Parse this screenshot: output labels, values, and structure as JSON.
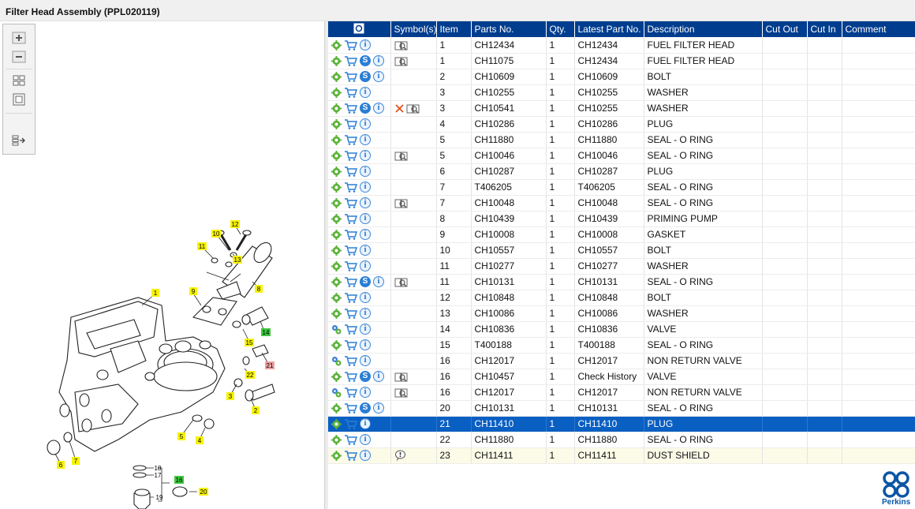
{
  "window": {
    "title": "Filter Head Assembly (PPL020119)"
  },
  "colors": {
    "header_bg": "#003d8f",
    "selected_row": "#0a5fc2",
    "highlight_row": "#fbfbe8",
    "brand": "#0b55a6"
  },
  "toolbar": {
    "buttons": [
      "zoom-in-icon",
      "zoom-out-icon",
      "fit-grid-icon",
      "zoom-window-icon",
      "export-icon"
    ]
  },
  "diagram": {
    "callouts": [
      "1",
      "2",
      "3",
      "4",
      "5",
      "6",
      "7",
      "8",
      "9",
      "10",
      "11",
      "12",
      "13",
      "14",
      "15",
      "16",
      "17",
      "18",
      "19",
      "20",
      "21",
      "22"
    ]
  },
  "table": {
    "columns": [
      "",
      "Symbol(s)",
      "Item",
      "Parts No.",
      "Qty.",
      "Latest Part No.",
      "Description",
      "Cut Out",
      "Cut In",
      "Comment"
    ],
    "rows": [
      {
        "gear": "single",
        "s": false,
        "sym": "book",
        "item": "1",
        "part": "CH12434",
        "qty": "1",
        "latest": "CH12434",
        "desc": "FUEL FILTER HEAD",
        "state": "",
        "first": true
      },
      {
        "gear": "single",
        "s": true,
        "sym": "book",
        "item": "1",
        "part": "CH11075",
        "qty": "1",
        "latest": "CH12434",
        "desc": "FUEL FILTER HEAD",
        "state": ""
      },
      {
        "gear": "single",
        "s": true,
        "sym": "",
        "item": "2",
        "part": "CH10609",
        "qty": "1",
        "latest": "CH10609",
        "desc": "BOLT",
        "state": ""
      },
      {
        "gear": "single",
        "s": false,
        "sym": "",
        "item": "3",
        "part": "CH10255",
        "qty": "1",
        "latest": "CH10255",
        "desc": "WASHER",
        "state": ""
      },
      {
        "gear": "single",
        "s": true,
        "sym": "x-book",
        "item": "3",
        "part": "CH10541",
        "qty": "1",
        "latest": "CH10255",
        "desc": "WASHER",
        "state": ""
      },
      {
        "gear": "single",
        "s": false,
        "sym": "",
        "item": "4",
        "part": "CH10286",
        "qty": "1",
        "latest": "CH10286",
        "desc": "PLUG",
        "state": ""
      },
      {
        "gear": "single",
        "s": false,
        "sym": "",
        "item": "5",
        "part": "CH11880",
        "qty": "1",
        "latest": "CH11880",
        "desc": "SEAL - O RING",
        "state": ""
      },
      {
        "gear": "single",
        "s": false,
        "sym": "book",
        "item": "5",
        "part": "CH10046",
        "qty": "1",
        "latest": "CH10046",
        "desc": "SEAL - O RING",
        "state": ""
      },
      {
        "gear": "single",
        "s": false,
        "sym": "",
        "item": "6",
        "part": "CH10287",
        "qty": "1",
        "latest": "CH10287",
        "desc": "PLUG",
        "state": ""
      },
      {
        "gear": "single",
        "s": false,
        "sym": "",
        "item": "7",
        "part": "T406205",
        "qty": "1",
        "latest": "T406205",
        "desc": "SEAL - O RING",
        "state": ""
      },
      {
        "gear": "single",
        "s": false,
        "sym": "book",
        "item": "7",
        "part": "CH10048",
        "qty": "1",
        "latest": "CH10048",
        "desc": "SEAL - O RING",
        "state": ""
      },
      {
        "gear": "single",
        "s": false,
        "sym": "",
        "item": "8",
        "part": "CH10439",
        "qty": "1",
        "latest": "CH10439",
        "desc": "PRIMING PUMP",
        "state": ""
      },
      {
        "gear": "single",
        "s": false,
        "sym": "",
        "item": "9",
        "part": "CH10008",
        "qty": "1",
        "latest": "CH10008",
        "desc": "GASKET",
        "state": ""
      },
      {
        "gear": "single",
        "s": false,
        "sym": "",
        "item": "10",
        "part": "CH10557",
        "qty": "1",
        "latest": "CH10557",
        "desc": "BOLT",
        "state": ""
      },
      {
        "gear": "single",
        "s": false,
        "sym": "",
        "item": "11",
        "part": "CH10277",
        "qty": "1",
        "latest": "CH10277",
        "desc": "WASHER",
        "state": ""
      },
      {
        "gear": "single",
        "s": true,
        "sym": "book",
        "item": "11",
        "part": "CH10131",
        "qty": "1",
        "latest": "CH10131",
        "desc": "SEAL - O RING",
        "state": ""
      },
      {
        "gear": "single",
        "s": false,
        "sym": "",
        "item": "12",
        "part": "CH10848",
        "qty": "1",
        "latest": "CH10848",
        "desc": "BOLT",
        "state": ""
      },
      {
        "gear": "single",
        "s": false,
        "sym": "",
        "item": "13",
        "part": "CH10086",
        "qty": "1",
        "latest": "CH10086",
        "desc": "WASHER",
        "state": ""
      },
      {
        "gear": "double",
        "s": false,
        "sym": "",
        "item": "14",
        "part": "CH10836",
        "qty": "1",
        "latest": "CH10836",
        "desc": "VALVE",
        "state": ""
      },
      {
        "gear": "single",
        "s": false,
        "sym": "",
        "item": "15",
        "part": "T400188",
        "qty": "1",
        "latest": "T400188",
        "desc": "SEAL - O RING",
        "state": ""
      },
      {
        "gear": "double",
        "s": false,
        "sym": "",
        "item": "16",
        "part": "CH12017",
        "qty": "1",
        "latest": "CH12017",
        "desc": "NON RETURN VALVE",
        "state": ""
      },
      {
        "gear": "single",
        "s": true,
        "sym": "book",
        "item": "16",
        "part": "CH10457",
        "qty": "1",
        "latest": "Check History",
        "desc": "VALVE",
        "state": ""
      },
      {
        "gear": "double",
        "s": false,
        "sym": "book",
        "item": "16",
        "part": "CH12017",
        "qty": "1",
        "latest": "CH12017",
        "desc": "NON RETURN VALVE",
        "state": ""
      },
      {
        "gear": "single",
        "s": true,
        "sym": "",
        "item": "20",
        "part": "CH10131",
        "qty": "1",
        "latest": "CH10131",
        "desc": "SEAL - O RING",
        "state": ""
      },
      {
        "gear": "single",
        "s": false,
        "sym": "",
        "item": "21",
        "part": "CH11410",
        "qty": "1",
        "latest": "CH11410",
        "desc": "PLUG",
        "state": "selected"
      },
      {
        "gear": "single",
        "s": false,
        "sym": "",
        "item": "22",
        "part": "CH11880",
        "qty": "1",
        "latest": "CH11880",
        "desc": "SEAL - O RING",
        "state": ""
      },
      {
        "gear": "single",
        "s": false,
        "sym": "pin",
        "item": "23",
        "part": "CH11411",
        "qty": "1",
        "latest": "CH11411",
        "desc": "DUST SHIELD",
        "state": "highlight"
      }
    ]
  },
  "brand": {
    "name": "Perkins"
  }
}
